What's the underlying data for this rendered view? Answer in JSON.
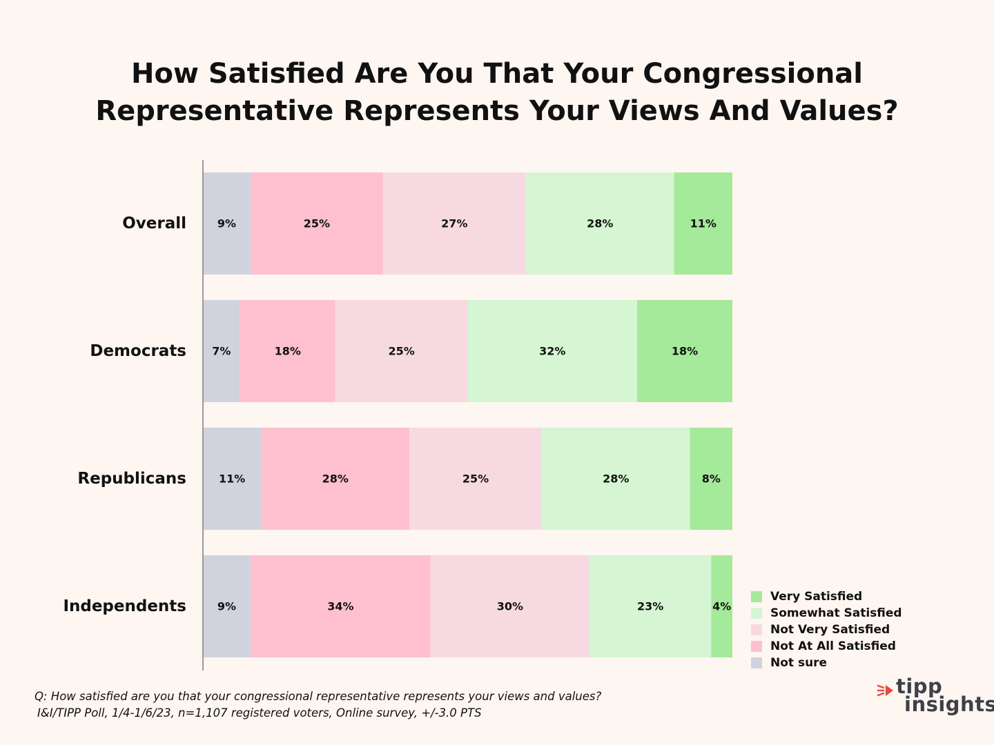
{
  "chart_data": {
    "type": "bar",
    "orientation": "horizontal",
    "stacked": true,
    "title_lines": [
      "How Satisfied Are You That Your Congressional",
      "Representative Represents Your Views And Values?"
    ],
    "categories": [
      "Overall",
      "Democrats",
      "Republicans",
      "Independents"
    ],
    "series": [
      {
        "name": "Not sure",
        "color": "#d0d3de",
        "values": [
          9,
          7,
          11,
          9
        ]
      },
      {
        "name": "Not At All Satisfied",
        "color": "#fec0cf",
        "values": [
          25,
          18,
          28,
          34
        ]
      },
      {
        "name": "Not Very Satisfied",
        "color": "#f7dae1",
        "values": [
          27,
          25,
          25,
          30
        ]
      },
      {
        "name": "Somewhat Satisfied",
        "color": "#d6f5d3",
        "values": [
          28,
          32,
          28,
          23
        ]
      },
      {
        "name": "Very Satisfied",
        "color": "#a5e99a",
        "values": [
          11,
          18,
          8,
          4
        ]
      }
    ],
    "data_labels": [
      [
        "9%",
        "25%",
        "27%",
        "28%",
        "11%"
      ],
      [
        "7%",
        "18%",
        "25%",
        "32%",
        "18%"
      ],
      [
        "11%",
        "28%",
        "25%",
        "28%",
        "8%"
      ],
      [
        "9%",
        "34%",
        "30%",
        "23%",
        "4%"
      ]
    ],
    "xlim": [
      0,
      100
    ],
    "legend_position": "bottom-right",
    "legend_order": [
      "Very Satisfied",
      "Somewhat Satisfied",
      "Not Very Satisfied",
      "Not At All Satisfied",
      "Not sure"
    ],
    "grid": false
  },
  "footnote": {
    "question": "Q: How satisfied are you that your congressional representative represents your views and values?",
    "source": "I&I/TIPP Poll, 1/4-1/6/23, n=1,107 registered voters, Online survey, +/-3.0 PTS"
  },
  "logo": {
    "line1": "tipp",
    "line2": "insights",
    "accent_color": "#e84a3f",
    "text_color": "#3f4048"
  },
  "colors": {
    "background": "#fdf6f1",
    "axis": "#9a9a9a"
  }
}
